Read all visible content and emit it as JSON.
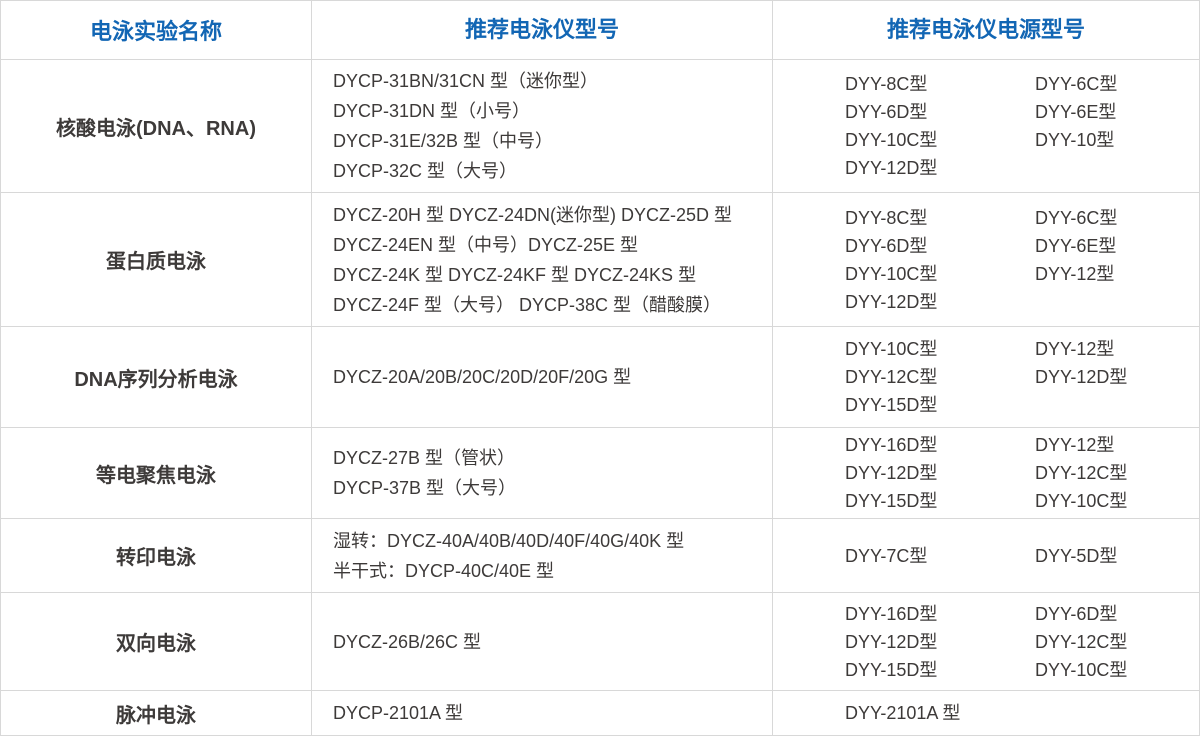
{
  "table": {
    "headers": [
      "电泳实验名称",
      "推荐电泳仪型号",
      "推荐电泳仪电源型号"
    ],
    "rows": [
      {
        "name": "核酸电泳(DNA、RNA)",
        "models": [
          "DYCP-31BN/31CN 型（迷你型）",
          "DYCP-31DN 型（小号）",
          "DYCP-31E/32B 型（中号）",
          "DYCP-32C 型（大号）"
        ],
        "power_left": [
          "DYY-8C型",
          "DYY-6D型",
          "DYY-10C型",
          "DYY-12D型"
        ],
        "power_right": [
          "DYY-6C型",
          "DYY-6E型",
          "DYY-10型"
        ]
      },
      {
        "name": "蛋白质电泳",
        "models": [
          "DYCZ-20H 型 DYCZ-24DN(迷你型) DYCZ-25D 型",
          "DYCZ-24EN 型（中号）DYCZ-25E 型",
          "DYCZ-24K 型  DYCZ-24KF 型  DYCZ-24KS 型",
          "DYCZ-24F 型（大号） DYCP-38C 型（醋酸膜）"
        ],
        "power_left": [
          "DYY-8C型",
          "DYY-6D型",
          "DYY-10C型",
          "DYY-12D型"
        ],
        "power_right": [
          "DYY-6C型",
          "DYY-6E型",
          "DYY-12型"
        ]
      },
      {
        "name": "DNA序列分析电泳",
        "models": [
          "DYCZ-20A/20B/20C/20D/20F/20G 型"
        ],
        "power_left": [
          "DYY-10C型",
          "DYY-12C型",
          "DYY-15D型"
        ],
        "power_right": [
          "DYY-12型",
          "DYY-12D型"
        ]
      },
      {
        "name": "等电聚焦电泳",
        "models": [
          "DYCZ-27B 型（管状）",
          "DYCP-37B 型（大号）"
        ],
        "power_left": [
          "DYY-16D型",
          "DYY-12D型",
          "DYY-15D型"
        ],
        "power_right": [
          "DYY-12型",
          "DYY-12C型",
          "DYY-10C型"
        ]
      },
      {
        "name": "转印电泳",
        "models": [
          "湿转：DYCZ-40A/40B/40D/40F/40G/40K 型",
          "半干式：DYCP-40C/40E 型"
        ],
        "power_left": [
          "DYY-7C型"
        ],
        "power_right": [
          "DYY-5D型"
        ]
      },
      {
        "name": "双向电泳",
        "models": [
          "DYCZ-26B/26C 型"
        ],
        "power_left": [
          "DYY-16D型",
          "DYY-12D型",
          "DYY-15D型"
        ],
        "power_right": [
          "DYY-6D型",
          "DYY-12C型",
          "DYY-10C型"
        ]
      },
      {
        "name": "脉冲电泳",
        "models": [
          "DYCP-2101A 型"
        ],
        "power_left": [
          "DYY-2101A 型"
        ],
        "power_right": []
      }
    ]
  },
  "colors": {
    "header_text": "#1266b4",
    "body_text": "#3d3a39",
    "border": "#d8d8d8",
    "background": "#ffffff"
  }
}
